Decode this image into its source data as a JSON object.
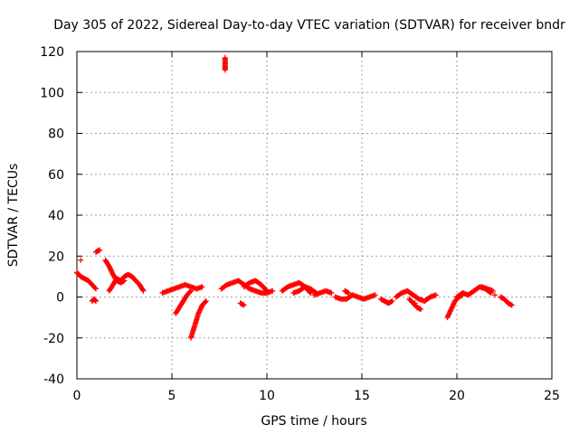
{
  "chart_data": {
    "type": "scatter",
    "title": "Day 305 of 2022, Sidereal Day-to-day VTEC variation (SDTVAR) for receiver bndr",
    "xlabel": "GPS time / hours",
    "ylabel": "SDTVAR / TECUs",
    "xlim": [
      0,
      25
    ],
    "ylim": [
      -40,
      120
    ],
    "xticks": [
      "0",
      "5",
      "10",
      "15",
      "20",
      "25"
    ],
    "yticks": [
      "-40",
      "-20",
      "0",
      "20",
      "40",
      "60",
      "80",
      "100",
      "120"
    ],
    "grid": true,
    "marker": "+",
    "color": "#ff0000",
    "segments": [
      {
        "x": [
          0.0,
          0.2,
          0.4,
          0.6,
          0.8,
          1.0
        ],
        "y": [
          12,
          10,
          9,
          8,
          6,
          4
        ]
      },
      {
        "x": [
          0.2
        ],
        "y": [
          18
        ]
      },
      {
        "x": [
          0.8,
          0.9,
          1.0
        ],
        "y": [
          -2,
          -1,
          -2
        ]
      },
      {
        "x": [
          1.0,
          1.2
        ],
        "y": [
          22,
          23
        ]
      },
      {
        "x": [
          1.5,
          1.7,
          1.9,
          2.1,
          2.3,
          2.5
        ],
        "y": [
          18,
          15,
          11,
          8,
          7,
          8
        ]
      },
      {
        "x": [
          1.7,
          1.9,
          2.1,
          2.3,
          2.5,
          2.7,
          2.9,
          3.1,
          3.3,
          3.5
        ],
        "y": [
          3,
          6,
          9,
          8,
          10,
          11,
          10,
          8,
          6,
          3
        ]
      },
      {
        "x": [
          4.5,
          4.8,
          5.1,
          5.4,
          5.7,
          6.0,
          6.3,
          6.6
        ],
        "y": [
          2,
          3,
          4,
          5,
          6,
          5,
          4,
          5
        ]
      },
      {
        "x": [
          5.2,
          5.4,
          5.6,
          5.8,
          6.0
        ],
        "y": [
          -8,
          -5,
          -2,
          1,
          3
        ]
      },
      {
        "x": [
          6.0,
          6.2,
          6.4,
          6.6,
          6.8
        ],
        "y": [
          -20,
          -14,
          -8,
          -4,
          -2
        ]
      },
      {
        "x": [
          7.8,
          7.8,
          7.8,
          7.8
        ],
        "y": [
          111,
          113,
          115,
          117
        ]
      },
      {
        "x": [
          7.6,
          7.9,
          8.2,
          8.5,
          8.8,
          9.1,
          9.4,
          9.7,
          10.0,
          10.3
        ],
        "y": [
          4,
          6,
          7,
          8,
          6,
          4,
          3,
          2,
          2,
          3
        ]
      },
      {
        "x": [
          8.6,
          8.8
        ],
        "y": [
          -3,
          -4
        ]
      },
      {
        "x": [
          8.8,
          9.1,
          9.4,
          9.7,
          10.0
        ],
        "y": [
          5,
          7,
          8,
          6,
          3
        ]
      },
      {
        "x": [
          10.8,
          11.1,
          11.4,
          11.7,
          12.0,
          12.3
        ],
        "y": [
          3,
          5,
          6,
          7,
          5,
          2
        ]
      },
      {
        "x": [
          11.4,
          11.7,
          12.0,
          12.3,
          12.6
        ],
        "y": [
          2,
          3,
          5,
          4,
          2
        ]
      },
      {
        "x": [
          12.5,
          12.8,
          13.1,
          13.4
        ],
        "y": [
          1,
          2,
          3,
          2
        ]
      },
      {
        "x": [
          13.6,
          13.9,
          14.2,
          14.5,
          14.8,
          15.1,
          15.4,
          15.7
        ],
        "y": [
          0,
          -1,
          -1,
          1,
          0,
          -1,
          0,
          1
        ]
      },
      {
        "x": [
          14.1,
          14.3
        ],
        "y": [
          3,
          2
        ]
      },
      {
        "x": [
          16.0,
          16.2,
          16.4,
          16.6
        ],
        "y": [
          -1,
          -2,
          -3,
          -2
        ]
      },
      {
        "x": [
          16.8,
          17.1,
          17.4,
          17.7,
          18.0,
          18.3,
          18.6,
          18.9
        ],
        "y": [
          0,
          2,
          3,
          1,
          -1,
          -2,
          0,
          1
        ]
      },
      {
        "x": [
          17.5,
          17.7,
          17.9,
          18.1
        ],
        "y": [
          -1,
          -3,
          -5,
          -6
        ]
      },
      {
        "x": [
          17.8
        ],
        "y": [
          -3
        ]
      },
      {
        "x": [
          19.5,
          19.7,
          19.9,
          20.1,
          20.3
        ],
        "y": [
          -10,
          -6,
          -2,
          0,
          1
        ]
      },
      {
        "x": [
          20.0,
          20.3,
          20.6,
          20.9,
          21.2,
          21.5,
          21.8
        ],
        "y": [
          0,
          2,
          1,
          3,
          5,
          4,
          2
        ]
      },
      {
        "x": [
          21.3,
          21.6,
          21.9
        ],
        "y": [
          5,
          4,
          3
        ]
      },
      {
        "x": [
          22.3,
          22.5,
          22.7,
          22.9
        ],
        "y": [
          0,
          -1,
          -3,
          -4
        ]
      },
      {
        "x": [
          22.0
        ],
        "y": [
          1
        ]
      }
    ]
  }
}
